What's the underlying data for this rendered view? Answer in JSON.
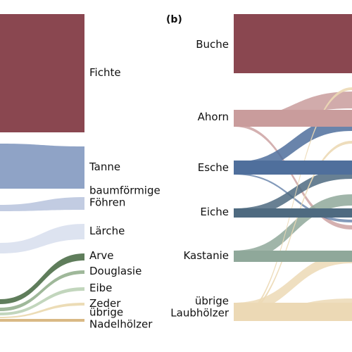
{
  "chart_data": [
    {
      "type": "sankey",
      "panel_label": "",
      "nodes": [
        {
          "id": "fichte",
          "label": "Fichte",
          "color": "#8a4750",
          "lines": [
            "Fichte"
          ]
        },
        {
          "id": "tanne",
          "label": "Tanne",
          "color": "#8fa3c6",
          "lines": [
            "Tanne"
          ]
        },
        {
          "id": "foehren",
          "label": "baumförmige Föhren",
          "color": "#c2cce2",
          "lines": [
            "baumförmige",
            "Föhren"
          ]
        },
        {
          "id": "laerche",
          "label": "Lärche",
          "color": "#dde3f0",
          "lines": [
            "Lärche"
          ]
        },
        {
          "id": "arve",
          "label": "Arve",
          "color": "#5f7d5b",
          "lines": [
            "Arve"
          ]
        },
        {
          "id": "douglasie",
          "label": "Douglasie",
          "color": "#9fb89a",
          "lines": [
            "Douglasie"
          ]
        },
        {
          "id": "eibe",
          "label": "Eibe",
          "color": "#c2d6bd",
          "lines": [
            "Eibe"
          ]
        },
        {
          "id": "zeder",
          "label": "Zeder",
          "color": "#ecdcb6",
          "lines": [
            "Zeder"
          ]
        },
        {
          "id": "uebrige_nadel",
          "label": "übrige Nadelhölzer",
          "color": "#d9b985",
          "lines": [
            "übrige",
            "Nadelhölzer"
          ]
        }
      ]
    },
    {
      "type": "sankey",
      "panel_label": "(b)",
      "nodes": [
        {
          "id": "buche",
          "label": "Buche",
          "color": "#8a4750",
          "lines": [
            "Buche"
          ]
        },
        {
          "id": "ahorn",
          "label": "Ahorn",
          "color": "#c99c9c",
          "lines": [
            "Ahorn"
          ]
        },
        {
          "id": "esche",
          "label": "Esche",
          "color": "#4f6f9c",
          "lines": [
            "Esche"
          ]
        },
        {
          "id": "eiche",
          "label": "Eiche",
          "color": "#4e6a80",
          "lines": [
            "Eiche"
          ]
        },
        {
          "id": "kastanie",
          "label": "Kastanie",
          "color": "#8fa89a",
          "lines": [
            "Kastanie"
          ]
        },
        {
          "id": "uebrige_laub",
          "label": "übrige Laubhölzer",
          "color": "#ecd9b5",
          "lines": [
            "übrige",
            "Laubhölzer"
          ]
        }
      ]
    }
  ]
}
